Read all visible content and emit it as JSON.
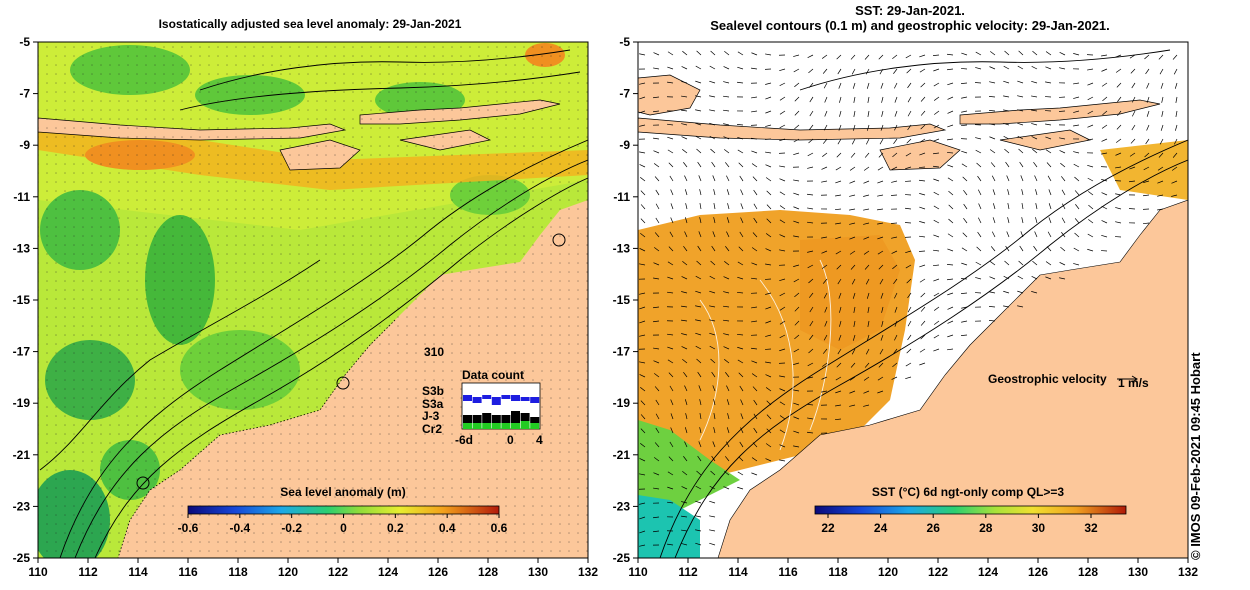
{
  "left_panel": {
    "title": "Isostatically adjusted sea level anomaly: 29-Jan-2021",
    "colorbar": {
      "label": "Sea level anomaly (m)",
      "ticks": [
        "-0.6",
        "-0.4",
        "-0.2",
        "0",
        "0.2",
        "0.4",
        "0.6"
      ]
    },
    "data_count": {
      "title": "Data count",
      "value": "310",
      "satellites": [
        "S3b",
        "S3a",
        "J-3",
        "Cr2"
      ],
      "satellite_colors": [
        "#1d1de0",
        "#ffffff",
        "#000000",
        "#22cc22"
      ],
      "axis_ticks": [
        "-6d",
        "0",
        "4"
      ]
    }
  },
  "right_panel": {
    "title_line1": "SST: 29-Jan-2021.",
    "title_line2": "Sealevel contours (0.1 m) and geostrophic velocity: 29-Jan-2021.",
    "velocity_label": "Geostrophic velocity",
    "velocity_scale": "1 m/s",
    "colorbar": {
      "label": "SST (°C) 6d ngt-only comp QL>=3",
      "ticks": [
        "22",
        "24",
        "26",
        "28",
        "30",
        "32"
      ]
    }
  },
  "axes": {
    "x_ticks": [
      "110",
      "112",
      "114",
      "116",
      "118",
      "120",
      "122",
      "124",
      "126",
      "128",
      "130",
      "132"
    ],
    "y_ticks": [
      "-5",
      "-7",
      "-9",
      "-11",
      "-13",
      "-15",
      "-17",
      "-19",
      "-21",
      "-23",
      "-25"
    ]
  },
  "credit": "© IMOS 09-Feb-2021 09:45 Hobart",
  "colors": {
    "land": "#fcc79a",
    "sla_green": "#8fdc3a",
    "sla_yellow": "#d8f238",
    "sst_orange": "#f0a32a",
    "ocean_white": "#ffffff"
  }
}
